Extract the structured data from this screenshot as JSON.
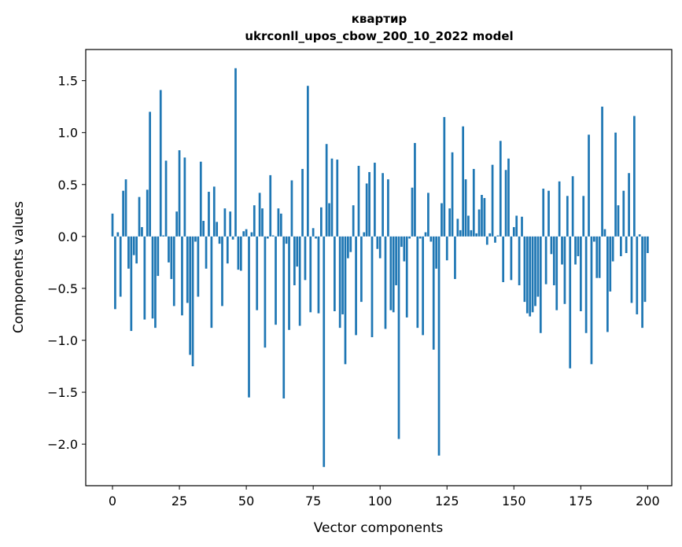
{
  "chart_data": {
    "type": "bar",
    "title_line1": "квартир",
    "title_line2": "ukrconll_upos_cbow_200_10_2022 model",
    "xlabel": "Vector components",
    "ylabel": "Components values",
    "xlim": [
      -10,
      209
    ],
    "ylim": [
      -2.4,
      1.8
    ],
    "xticks": [
      0,
      25,
      50,
      75,
      100,
      125,
      150,
      175,
      200
    ],
    "xtick_labels": [
      "0",
      "25",
      "50",
      "75",
      "100",
      "125",
      "150",
      "175",
      "200"
    ],
    "yticks": [
      -2.0,
      -1.5,
      -1.0,
      -0.5,
      0.0,
      0.5,
      1.0,
      1.5
    ],
    "ytick_labels": [
      "−2.0",
      "−1.5",
      "−1.0",
      "−0.5",
      "0.0",
      "0.5",
      "1.0",
      "1.5"
    ],
    "bar_color": "#1f77b4",
    "values": [
      0.22,
      -0.7,
      0.04,
      -0.58,
      0.44,
      0.55,
      -0.31,
      -0.91,
      -0.18,
      -0.26,
      0.38,
      0.09,
      -0.8,
      0.45,
      1.2,
      -0.79,
      -0.88,
      -0.38,
      1.41,
      0.01,
      0.73,
      -0.25,
      -0.41,
      -0.67,
      0.24,
      0.83,
      -0.76,
      0.76,
      -0.64,
      -1.14,
      -1.25,
      -0.05,
      -0.58,
      0.72,
      0.15,
      -0.31,
      0.43,
      -0.88,
      0.48,
      0.14,
      -0.07,
      -0.67,
      0.27,
      -0.26,
      0.24,
      -0.03,
      1.62,
      -0.32,
      -0.33,
      0.05,
      0.07,
      -1.55,
      0.04,
      0.3,
      -0.71,
      0.42,
      0.27,
      -1.07,
      -0.02,
      0.59,
      0.01,
      -0.85,
      0.27,
      0.22,
      -1.56,
      -0.07,
      -0.9,
      0.54,
      -0.47,
      -0.29,
      -0.86,
      0.65,
      -0.42,
      1.45,
      -0.73,
      0.08,
      -0.02,
      -0.74,
      0.28,
      -2.22,
      0.89,
      0.32,
      0.75,
      -0.72,
      0.74,
      -0.88,
      -0.75,
      -1.23,
      -0.21,
      -0.15,
      0.3,
      -0.95,
      0.68,
      -0.63,
      0.04,
      0.51,
      0.62,
      -0.97,
      0.71,
      -0.12,
      -0.21,
      0.61,
      -0.89,
      0.55,
      -0.71,
      -0.73,
      -0.47,
      -1.95,
      -0.1,
      -0.24,
      -0.78,
      -0.02,
      0.47,
      0.9,
      -0.88,
      -0.02,
      -0.95,
      0.04,
      0.42,
      -0.05,
      -1.09,
      -0.31,
      -2.11,
      0.32,
      1.15,
      -0.23,
      0.27,
      0.81,
      -0.41,
      0.17,
      0.06,
      1.06,
      0.55,
      0.2,
      0.06,
      0.65,
      0.03,
      0.26,
      0.4,
      0.37,
      -0.08,
      0.03,
      0.69,
      -0.06,
      0.01,
      0.92,
      -0.44,
      0.64,
      0.75,
      -0.42,
      0.09,
      0.2,
      -0.47,
      0.19,
      -0.63,
      -0.74,
      -0.77,
      -0.73,
      -0.67,
      -0.58,
      -0.93,
      0.46,
      -0.46,
      0.44,
      -0.17,
      -0.47,
      -0.71,
      0.53,
      -0.27,
      -0.65,
      0.39,
      -1.27,
      0.58,
      -0.27,
      -0.19,
      -0.72,
      0.39,
      -0.93,
      0.98,
      -1.23,
      -0.05,
      -0.4,
      -0.4,
      1.25,
      0.07,
      -0.92,
      -0.53,
      -0.24,
      1.0,
      0.3,
      -0.19,
      0.44,
      -0.16,
      0.61,
      -0.64,
      1.16,
      -0.75,
      0.02,
      -0.88,
      -0.63,
      -0.16
    ]
  }
}
